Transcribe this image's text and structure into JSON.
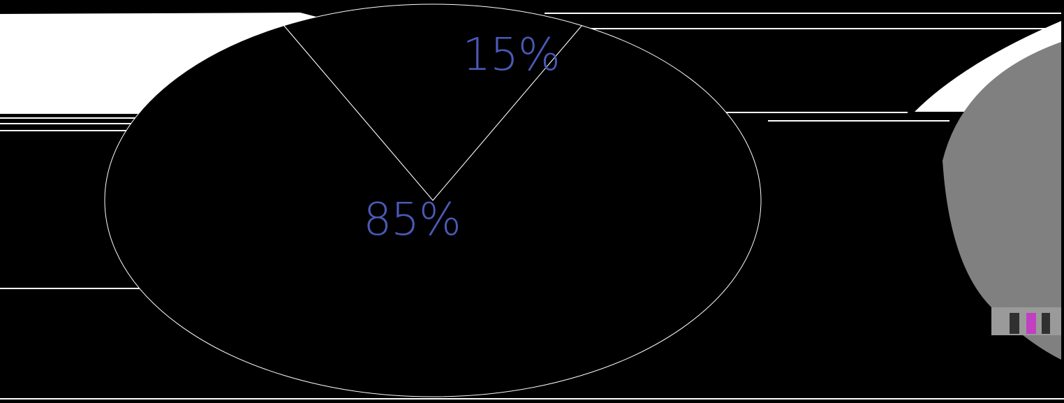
{
  "chart_data": {
    "type": "pie",
    "slices": [
      {
        "label": "15%",
        "value": 15
      },
      {
        "label": "85%",
        "value": 85
      }
    ],
    "colors": {
      "background": "#000000",
      "slice_small": "#000000",
      "slice_large": "#000000",
      "label": "#4a5ab6",
      "glitch_band": "#ffffff",
      "side_panel": "#808080"
    }
  }
}
